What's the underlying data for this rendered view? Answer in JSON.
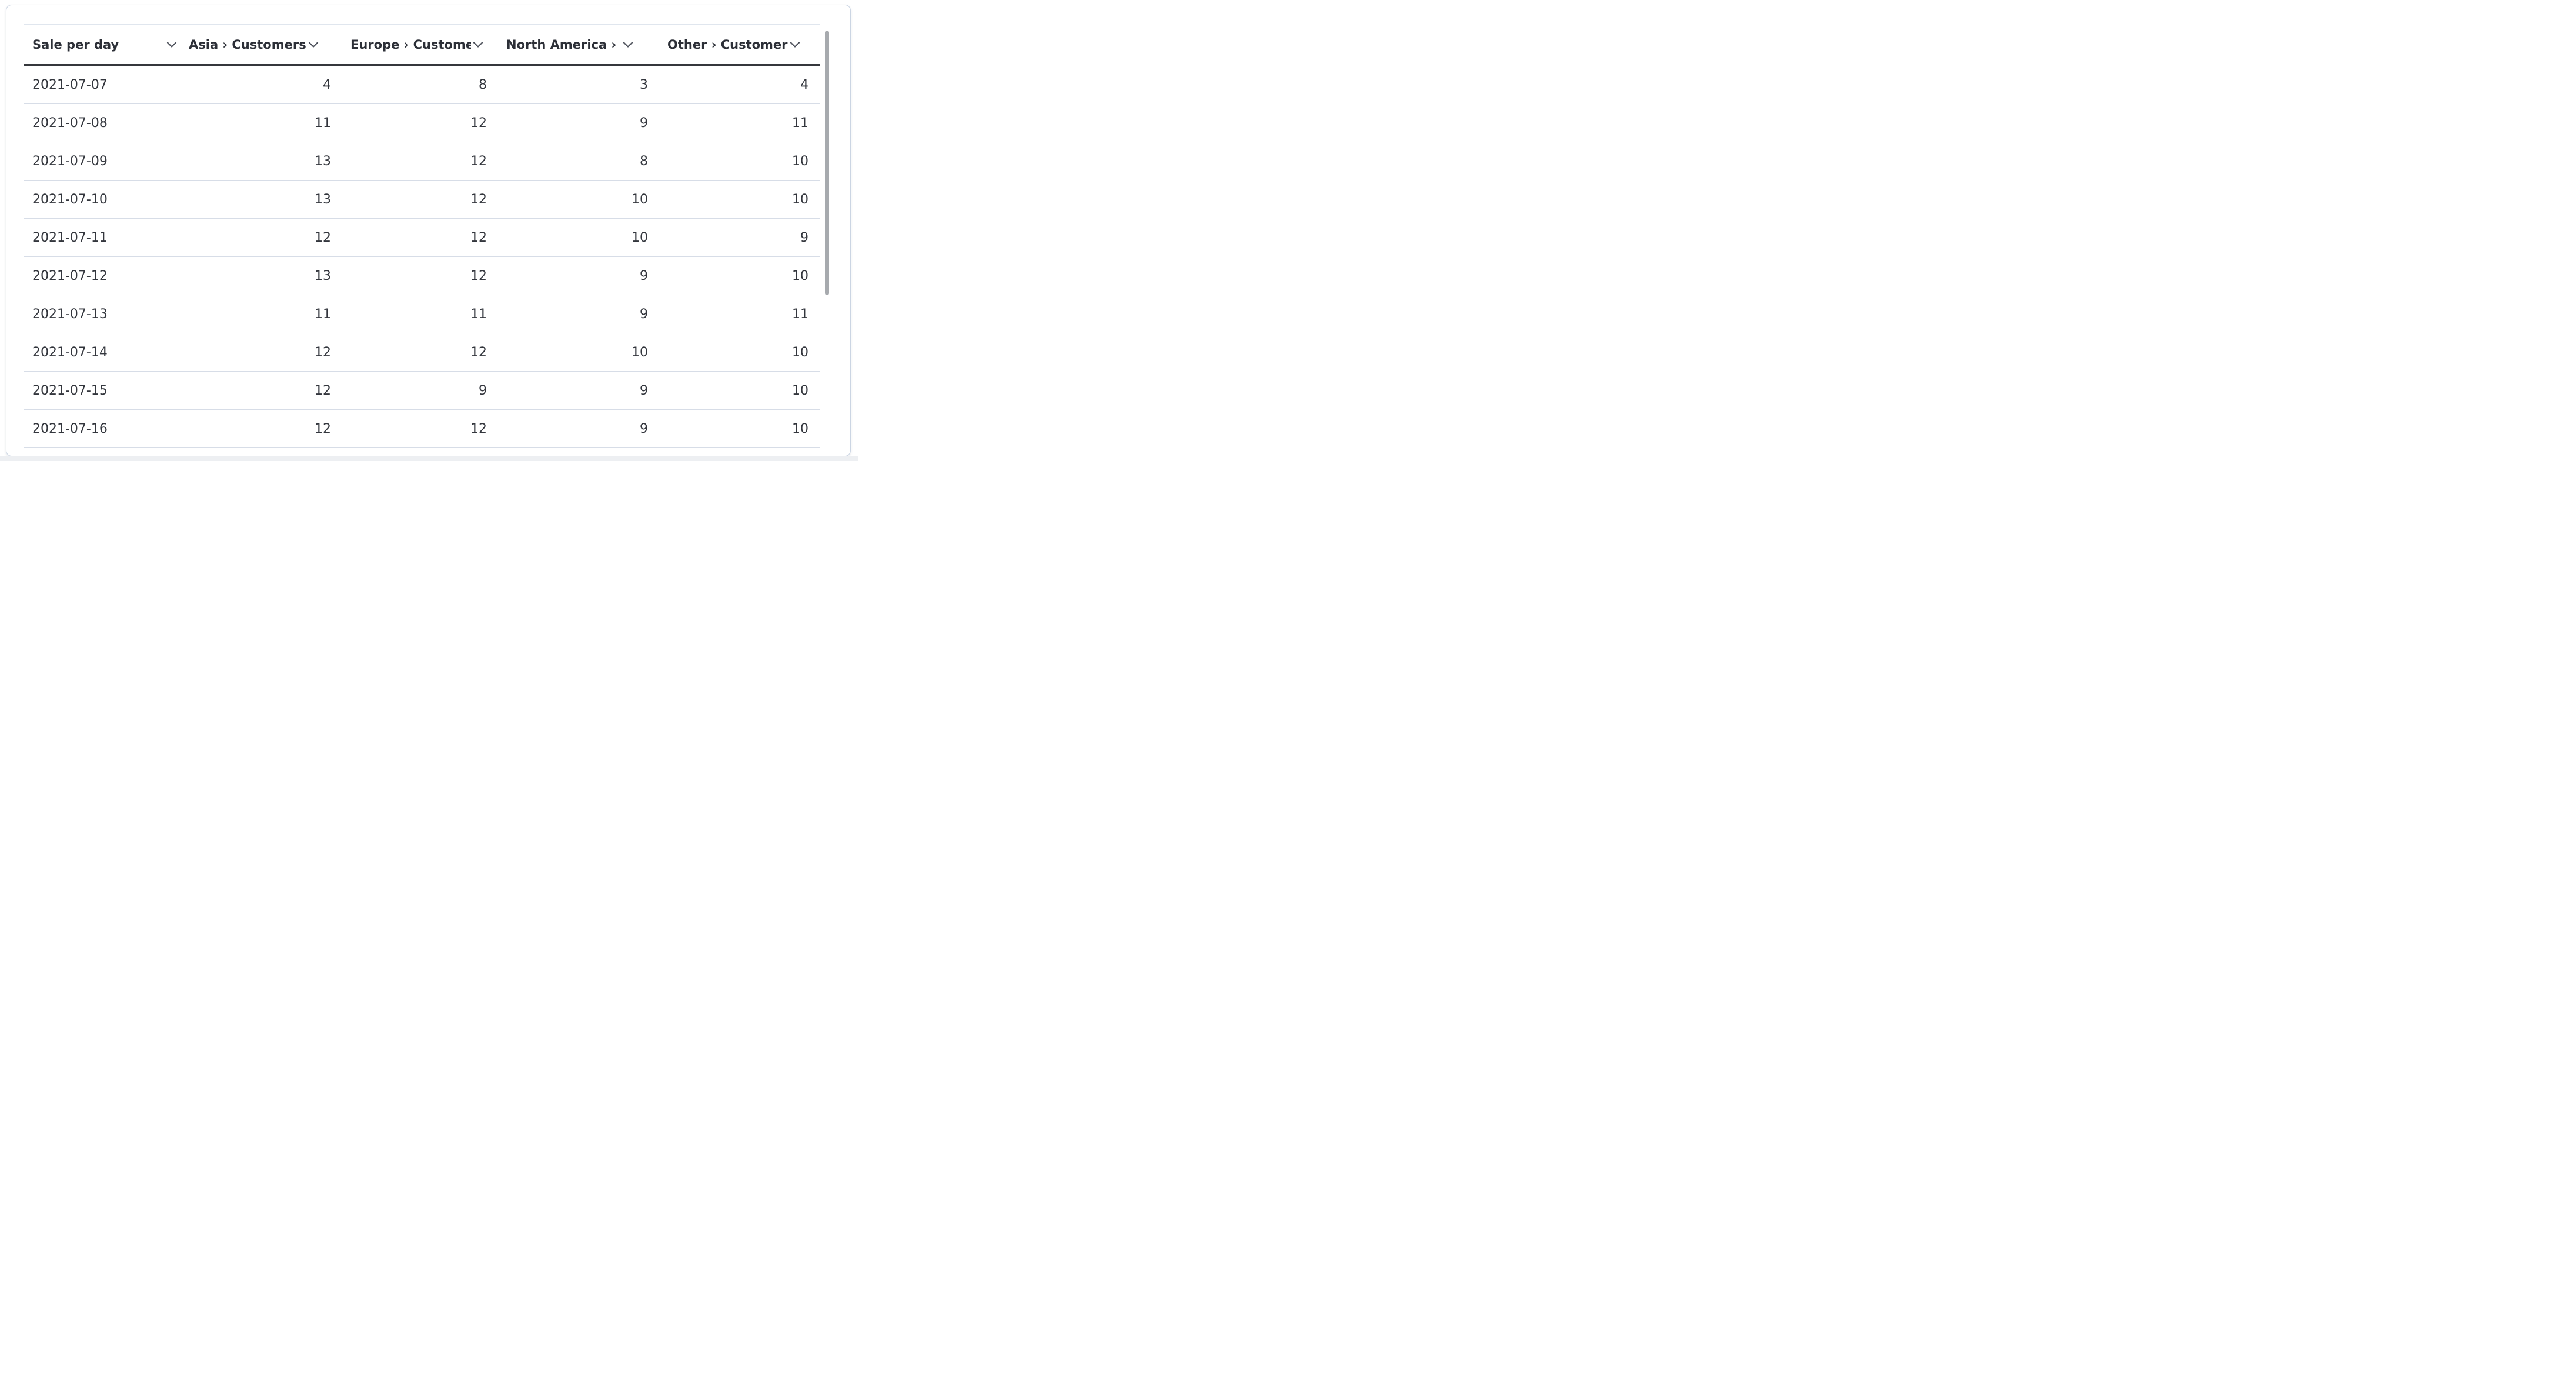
{
  "table": {
    "columns": [
      {
        "id": "sale-per-day",
        "label": "Sale per day",
        "align": "left"
      },
      {
        "id": "asia-customers",
        "label": "Asia › Customers",
        "align": "right"
      },
      {
        "id": "europe-customers",
        "label": "Europe › Customers",
        "align": "right"
      },
      {
        "id": "north-america-customers",
        "label": "North America › Customers",
        "align": "right"
      },
      {
        "id": "other-customers",
        "label": "Other › Customers",
        "align": "right"
      }
    ],
    "rows": [
      [
        "2021-07-07",
        "4",
        "8",
        "3",
        "4"
      ],
      [
        "2021-07-08",
        "11",
        "12",
        "9",
        "11"
      ],
      [
        "2021-07-09",
        "13",
        "12",
        "8",
        "10"
      ],
      [
        "2021-07-10",
        "13",
        "12",
        "10",
        "10"
      ],
      [
        "2021-07-11",
        "12",
        "12",
        "10",
        "9"
      ],
      [
        "2021-07-12",
        "13",
        "12",
        "9",
        "10"
      ],
      [
        "2021-07-13",
        "11",
        "11",
        "9",
        "11"
      ],
      [
        "2021-07-14",
        "12",
        "12",
        "10",
        "10"
      ],
      [
        "2021-07-15",
        "12",
        "9",
        "9",
        "10"
      ],
      [
        "2021-07-16",
        "12",
        "12",
        "9",
        "10"
      ]
    ]
  },
  "icons": {
    "header_menu": "chevron-down"
  },
  "scrollbar": {
    "vertical_visible": true
  },
  "colors": {
    "text": "#33363d",
    "header_text": "#2c2f37",
    "header_underline": "#35373c",
    "row_divider": "#d7dde7",
    "table_top_border": "#e0e6ee",
    "card_border": "#cbd5e3",
    "card_bg": "#ffffff",
    "scrollbar_thumb": "#a7aaae",
    "page_bottom_strip": "#edeff2"
  }
}
